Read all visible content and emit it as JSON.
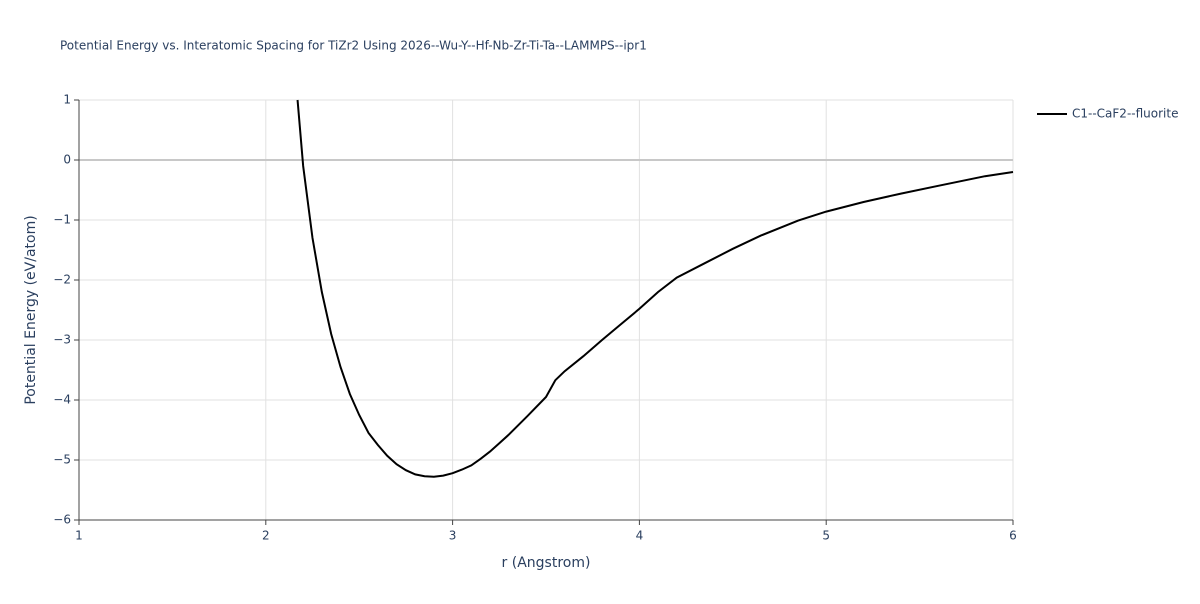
{
  "chart_data": {
    "type": "line",
    "title": "Potential Energy vs. Interatomic Spacing for TiZr2 Using 2026--Wu-Y--Hf-Nb-Zr-Ti-Ta--LAMMPS--ipr1",
    "x_label": "r (Angstrom)",
    "y_label": "Potential Energy (eV/atom)",
    "x": [
      2.17,
      2.2,
      2.25,
      2.3,
      2.35,
      2.4,
      2.45,
      2.5,
      2.55,
      2.6,
      2.65,
      2.7,
      2.75,
      2.8,
      2.85,
      2.9,
      2.95,
      3.0,
      3.05,
      3.1,
      3.15,
      3.2,
      3.25,
      3.3,
      3.4,
      3.5,
      3.55,
      3.6,
      3.7,
      3.8,
      3.9,
      4.0,
      4.1,
      4.2,
      4.35,
      4.5,
      4.65,
      4.85,
      5.0,
      5.2,
      5.4,
      5.6,
      5.85,
      6.0
    ],
    "series": [
      {
        "name": "C1--CaF2--fluorite",
        "color": "#000000",
        "values": [
          1.0,
          -0.1,
          -1.3,
          -2.2,
          -2.9,
          -3.45,
          -3.9,
          -4.25,
          -4.55,
          -4.75,
          -4.93,
          -5.07,
          -5.17,
          -5.24,
          -5.27,
          -5.28,
          -5.26,
          -5.22,
          -5.16,
          -5.09,
          -4.98,
          -4.86,
          -4.72,
          -4.58,
          -4.27,
          -3.95,
          -3.67,
          -3.52,
          -3.27,
          -3.0,
          -2.74,
          -2.48,
          -2.2,
          -1.96,
          -1.72,
          -1.48,
          -1.26,
          -1.01,
          -0.86,
          -0.7,
          -0.56,
          -0.43,
          -0.27,
          -0.2
        ]
      }
    ],
    "xlim": [
      1,
      6
    ],
    "xticks": [
      1,
      2,
      3,
      4,
      5,
      6
    ],
    "ylim": [
      -6,
      1
    ],
    "yticks": [
      {
        "value": -6,
        "label": "−6"
      },
      {
        "value": -5,
        "label": "−5"
      },
      {
        "value": -4,
        "label": "−4"
      },
      {
        "value": -3,
        "label": "−3"
      },
      {
        "value": -2,
        "label": "−2"
      },
      {
        "value": -1,
        "label": "−1"
      },
      0,
      1
    ],
    "grid": true,
    "legend": "right"
  }
}
